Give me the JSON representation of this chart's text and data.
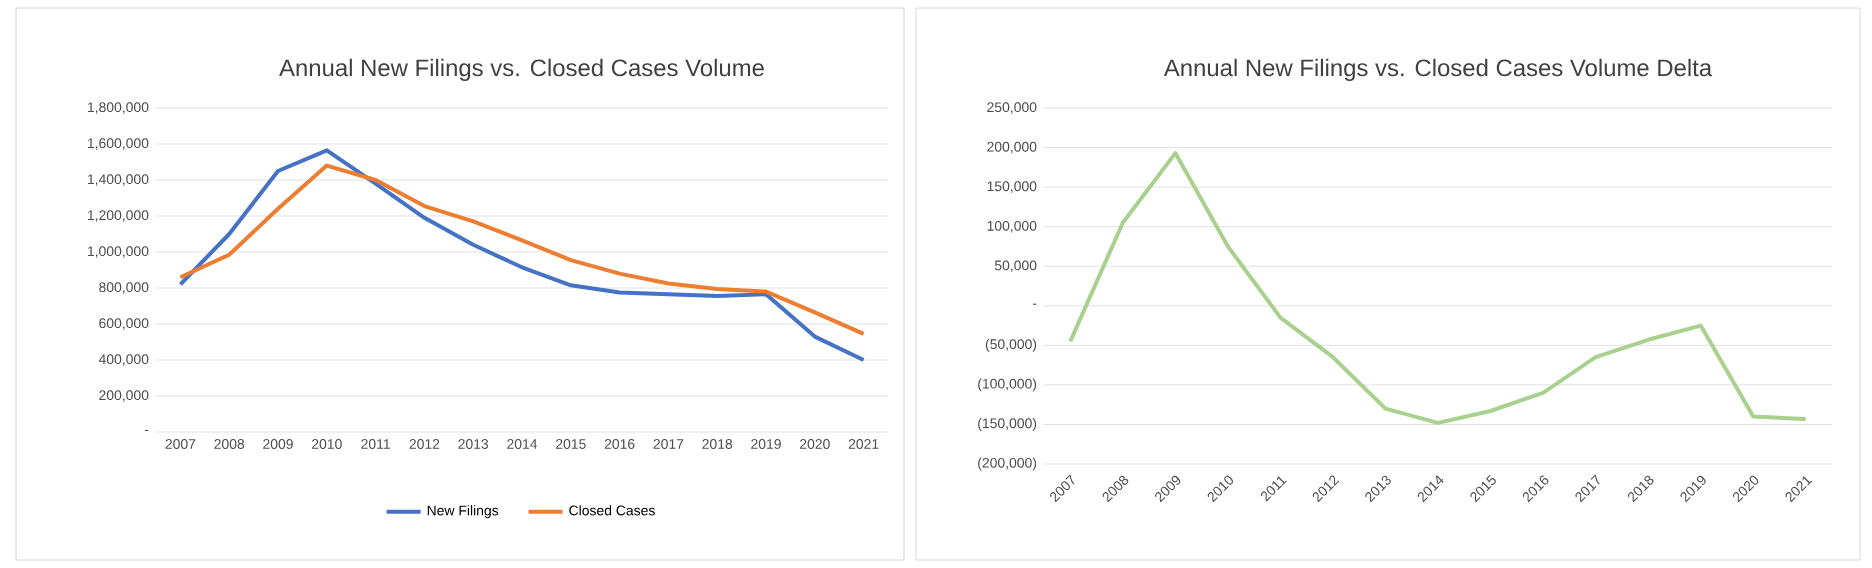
{
  "chart_data": [
    {
      "type": "line",
      "title": "Annual New Filings vs. Closed Cases Volume",
      "categories": [
        "2007",
        "2008",
        "2009",
        "2010",
        "2011",
        "2012",
        "2013",
        "2014",
        "2015",
        "2016",
        "2017",
        "2018",
        "2019",
        "2020",
        "2021"
      ],
      "series": [
        {
          "name": "New Filings",
          "color": "#4472c4",
          "values": [
            820000,
            1100000,
            1450000,
            1565000,
            1380000,
            1190000,
            1040000,
            915000,
            815000,
            775000,
            765000,
            755000,
            765000,
            530000,
            400000
          ]
        },
        {
          "name": "Closed Cases",
          "color": "#ed7d31",
          "values": [
            860000,
            985000,
            1240000,
            1480000,
            1400000,
            1255000,
            1170000,
            1065000,
            955000,
            880000,
            825000,
            795000,
            780000,
            665000,
            545000
          ]
        }
      ],
      "ylim": [
        0,
        1800000
      ],
      "yticks": [
        {
          "value": 0,
          "label": "-"
        },
        {
          "value": 200000,
          "label": "200,000"
        },
        {
          "value": 400000,
          "label": "400,000"
        },
        {
          "value": 600000,
          "label": "600,000"
        },
        {
          "value": 800000,
          "label": "800,000"
        },
        {
          "value": 1000000,
          "label": "1,000,000"
        },
        {
          "value": 1200000,
          "label": "1,200,000"
        },
        {
          "value": 1400000,
          "label": "1,400,000"
        },
        {
          "value": 1600000,
          "label": "1,600,000"
        },
        {
          "value": 1800000,
          "label": "1,800,000"
        }
      ],
      "grid": "y",
      "legend": "bottom",
      "marker": "none",
      "line_style": "solid"
    },
    {
      "type": "line",
      "title": "Annual New Filings vs. Closed Cases Volume Delta",
      "categories": [
        "2007",
        "2008",
        "2009",
        "2010",
        "2011",
        "2012",
        "2013",
        "2014",
        "2015",
        "2016",
        "2017",
        "2018",
        "2019",
        "2020",
        "2021"
      ],
      "series": [
        {
          "color": "#a9d18e",
          "values": [
            -45000,
            105000,
            193000,
            75000,
            -15000,
            -65000,
            -130000,
            -148000,
            -133000,
            -110000,
            -65000,
            -43000,
            -25000,
            -140000,
            -143000
          ]
        }
      ],
      "ylim": [
        -200000,
        250000
      ],
      "yticks": [
        {
          "value": -200000,
          "label": "(200,000)"
        },
        {
          "value": -150000,
          "label": "(150,000)"
        },
        {
          "value": -100000,
          "label": "(100,000)"
        },
        {
          "value": -50000,
          "label": "(50,000)"
        },
        {
          "value": 0,
          "label": "-"
        },
        {
          "value": 50000,
          "label": "50,000"
        },
        {
          "value": 100000,
          "label": "100,000"
        },
        {
          "value": 150000,
          "label": "150,000"
        },
        {
          "value": 200000,
          "label": "200,000"
        },
        {
          "value": 250000,
          "label": "250,000"
        }
      ],
      "grid": "y",
      "marker": "none",
      "line_style": "solid"
    }
  ]
}
